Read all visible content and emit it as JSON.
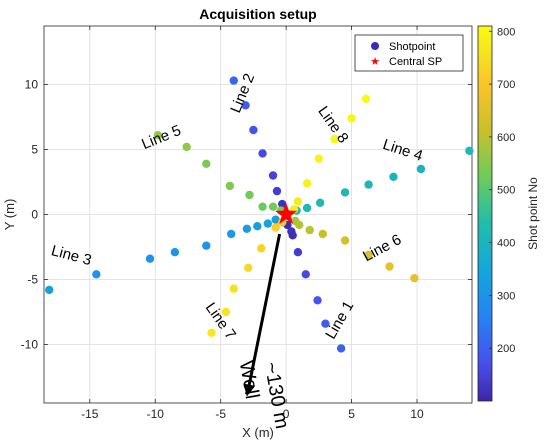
{
  "chart_data": {
    "type": "scatter",
    "title": "Acquisition setup",
    "xlabel": "X (m)",
    "ylabel": "Y (m)",
    "xlim": [
      -18.5,
      14.2
    ],
    "ylim": [
      -14.5,
      14.5
    ],
    "xticks": [
      -15,
      -10,
      -5,
      0,
      5,
      10
    ],
    "yticks": [
      -10,
      -5,
      0,
      5,
      10
    ],
    "grid": true,
    "colorbar": {
      "label": "Shot point No",
      "range": [
        100,
        810
      ],
      "ticks": [
        200,
        300,
        400,
        500,
        600,
        700,
        800
      ]
    },
    "legend": {
      "placement": "top-right",
      "entries": [
        {
          "label": "Shotpoint",
          "marker": "circle",
          "color": "#3b2bb8"
        },
        {
          "label": "Central SP",
          "marker": "star",
          "color": "#ff0000"
        }
      ]
    },
    "central_sp": {
      "x": 0,
      "y": 0
    },
    "points": [
      {
        "x": 0.1,
        "y": -0.8,
        "c": 110
      },
      {
        "x": 0.4,
        "y": -1.3,
        "c": 120
      },
      {
        "x": 0.9,
        "y": -2.9,
        "c": 140
      },
      {
        "x": 1.5,
        "y": -4.6,
        "c": 160
      },
      {
        "x": 2.4,
        "y": -6.6,
        "c": 180
      },
      {
        "x": 3.0,
        "y": -8.4,
        "c": 190
      },
      {
        "x": 4.2,
        "y": -10.3,
        "c": 200
      },
      {
        "x": 0.5,
        "y": -1.6,
        "c": 115
      },
      {
        "x": -0.3,
        "y": 0.8,
        "c": 120
      },
      {
        "x": -0.7,
        "y": 1.8,
        "c": 140
      },
      {
        "x": -1.0,
        "y": 3.0,
        "c": 150
      },
      {
        "x": -1.8,
        "y": 4.7,
        "c": 160
      },
      {
        "x": -2.5,
        "y": 6.5,
        "c": 175
      },
      {
        "x": -3.1,
        "y": 8.4,
        "c": 190
      },
      {
        "x": -4.0,
        "y": 10.3,
        "c": 210
      },
      {
        "x": -0.8,
        "y": -0.4,
        "c": 330
      },
      {
        "x": -1.4,
        "y": -0.7,
        "c": 340
      },
      {
        "x": -2.2,
        "y": -0.9,
        "c": 330
      },
      {
        "x": -3.0,
        "y": -1.1,
        "c": 320
      },
      {
        "x": -4.2,
        "y": -1.5,
        "c": 315
      },
      {
        "x": -6.1,
        "y": -2.4,
        "c": 310
      },
      {
        "x": -8.5,
        "y": -2.9,
        "c": 305
      },
      {
        "x": -10.4,
        "y": -3.4,
        "c": 300
      },
      {
        "x": -14.5,
        "y": -4.6,
        "c": 300
      },
      {
        "x": -18.1,
        "y": -5.8,
        "c": 330
      },
      {
        "x": 0.8,
        "y": 0.3,
        "c": 420
      },
      {
        "x": 1.6,
        "y": 0.5,
        "c": 420
      },
      {
        "x": 2.6,
        "y": 0.9,
        "c": 420
      },
      {
        "x": 4.5,
        "y": 1.7,
        "c": 410
      },
      {
        "x": 6.3,
        "y": 2.3,
        "c": 410
      },
      {
        "x": 8.2,
        "y": 2.9,
        "c": 400
      },
      {
        "x": 10.3,
        "y": 3.5,
        "c": 400
      },
      {
        "x": 14.0,
        "y": 4.9,
        "c": 420
      },
      {
        "x": -0.4,
        "y": 0.3,
        "c": 540
      },
      {
        "x": -1.0,
        "y": 0.6,
        "c": 530
      },
      {
        "x": -1.8,
        "y": 0.6,
        "c": 520
      },
      {
        "x": -2.8,
        "y": 1.5,
        "c": 530
      },
      {
        "x": -4.3,
        "y": 2.2,
        "c": 540
      },
      {
        "x": -6.1,
        "y": 3.9,
        "c": 540
      },
      {
        "x": -7.6,
        "y": 5.2,
        "c": 560
      },
      {
        "x": -9.8,
        "y": 6.1,
        "c": 570
      },
      {
        "x": 0.7,
        "y": -0.5,
        "c": 580
      },
      {
        "x": 1.0,
        "y": -0.8,
        "c": 590
      },
      {
        "x": 1.8,
        "y": -1.2,
        "c": 600
      },
      {
        "x": 2.8,
        "y": -1.5,
        "c": 610
      },
      {
        "x": 4.5,
        "y": -2.0,
        "c": 630
      },
      {
        "x": 6.3,
        "y": -3.1,
        "c": 640
      },
      {
        "x": 7.9,
        "y": -4.0,
        "c": 660
      },
      {
        "x": 9.8,
        "y": -4.9,
        "c": 660
      },
      {
        "x": -0.3,
        "y": -0.6,
        "c": 700
      },
      {
        "x": -0.8,
        "y": -1.0,
        "c": 720
      },
      {
        "x": -1.9,
        "y": -2.6,
        "c": 730
      },
      {
        "x": -2.9,
        "y": -4.1,
        "c": 740
      },
      {
        "x": -4.0,
        "y": -5.7,
        "c": 750
      },
      {
        "x": -4.6,
        "y": -7.5,
        "c": 760
      },
      {
        "x": -5.7,
        "y": -9.1,
        "c": 770
      },
      {
        "x": 0.6,
        "y": 0.4,
        "c": 780
      },
      {
        "x": 0.9,
        "y": 1.0,
        "c": 780
      },
      {
        "x": 1.6,
        "y": 2.4,
        "c": 790
      },
      {
        "x": 2.5,
        "y": 4.3,
        "c": 790
      },
      {
        "x": 3.7,
        "y": 5.8,
        "c": 800
      },
      {
        "x": 5.0,
        "y": 7.4,
        "c": 800
      },
      {
        "x": 6.1,
        "y": 8.9,
        "c": 805
      }
    ],
    "annotations": [
      {
        "text": "Line 1",
        "x": 4.4,
        "y": -8.3,
        "rotate": 60
      },
      {
        "text": "Line 2",
        "x": -3.0,
        "y": 9.2,
        "rotate": 68
      },
      {
        "text": "Line 3",
        "x": -16.5,
        "y": -3.5,
        "rotate": -15
      },
      {
        "text": "Line 4",
        "x": 8.8,
        "y": 4.6,
        "rotate": -18
      },
      {
        "text": "Line 5",
        "x": -9.4,
        "y": 5.6,
        "rotate": 22
      },
      {
        "text": "Line 6",
        "x": 7.5,
        "y": -2.9,
        "rotate": 28
      },
      {
        "text": "Line 7",
        "x": -5.3,
        "y": -8.4,
        "rotate": -55
      },
      {
        "text": "Line 8",
        "x": 3.3,
        "y": 6.7,
        "rotate": -55
      },
      {
        "text": "Well",
        "x": -3.3,
        "y": -12.8,
        "rotate": -80,
        "size": "big"
      },
      {
        "text": "~130 m",
        "x": -1.2,
        "y": -14.0,
        "rotate": -80,
        "size": "big"
      }
    ],
    "arrow": {
      "from": {
        "x": -0.5,
        "y": -1.5
      },
      "to": {
        "x": -3.0,
        "y": -14.0
      }
    }
  }
}
